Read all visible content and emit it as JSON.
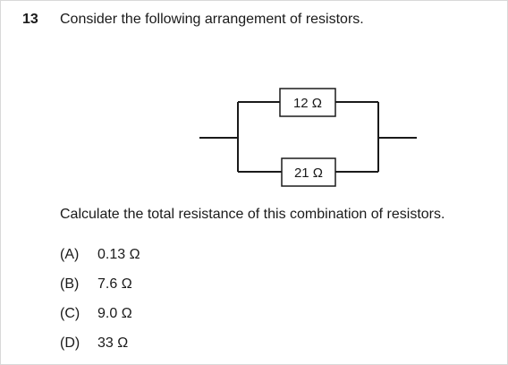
{
  "question": {
    "number": "13",
    "text": "Consider the following arrangement of resistors.",
    "prompt": "Calculate the total resistance of this combination of resistors."
  },
  "circuit": {
    "resistors": [
      {
        "label": "12 Ω",
        "branch": "top"
      },
      {
        "label": "21 Ω",
        "branch": "bottom"
      }
    ]
  },
  "options": [
    {
      "letter": "(A)",
      "value": "0.13 Ω"
    },
    {
      "letter": "(B)",
      "value": "7.6 Ω"
    },
    {
      "letter": "(C)",
      "value": "9.0 Ω"
    },
    {
      "letter": "(D)",
      "value": "33 Ω"
    }
  ]
}
